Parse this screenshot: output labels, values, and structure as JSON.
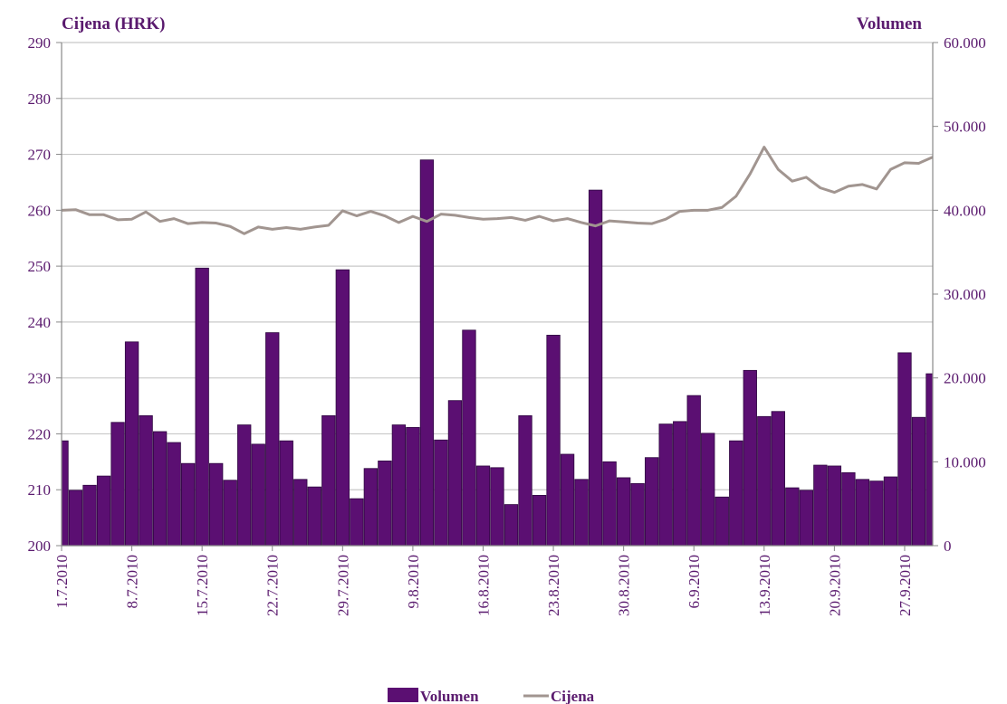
{
  "chart_data": {
    "type": "bar_line",
    "y_title": "Cijena (HRK)",
    "y2_title": "Volumen",
    "categories": [
      "1.7.2010",
      null,
      null,
      null,
      null,
      "8.7.2010",
      null,
      null,
      null,
      null,
      "15.7.2010",
      null,
      null,
      null,
      null,
      "22.7.2010",
      null,
      null,
      null,
      null,
      "29.7.2010",
      null,
      null,
      null,
      null,
      "9.8.2010",
      null,
      null,
      null,
      null,
      "16.8.2010",
      null,
      null,
      null,
      null,
      "23.8.2010",
      null,
      null,
      null,
      null,
      "30.8.2010",
      null,
      null,
      null,
      null,
      "6.9.2010",
      null,
      null,
      null,
      null,
      "13.9.2010",
      null,
      null,
      null,
      null,
      "20.9.2010",
      null,
      null,
      null,
      null,
      "27.9.2010",
      null,
      null
    ],
    "series": [
      {
        "name": "Volumen",
        "type": "bar",
        "axis": "y2",
        "color": "#5b0f72",
        "values": [
          12500,
          6600,
          7200,
          8300,
          14700,
          24300,
          15500,
          13600,
          12300,
          9800,
          33100,
          9800,
          7800,
          14400,
          12100,
          25400,
          12500,
          7900,
          7000,
          15500,
          32900,
          5600,
          9200,
          10100,
          14400,
          14100,
          46000,
          12600,
          17300,
          25700,
          9500,
          9300,
          4900,
          15500,
          6000,
          25100,
          10900,
          7900,
          42400,
          10000,
          8100,
          7400,
          10500,
          14500,
          14800,
          17900,
          13400,
          5800,
          12500,
          20900,
          15400,
          16000,
          6900,
          6600,
          9600,
          9500,
          8700,
          7900,
          7700,
          8200,
          23000,
          15300,
          20500
        ]
      },
      {
        "name": "Cijena",
        "type": "line",
        "axis": "y",
        "color": "#a19590",
        "values": [
          260,
          260.1,
          259.2,
          259.2,
          258.3,
          258.4,
          259.7,
          258,
          258.5,
          257.6,
          257.8,
          257.7,
          257.1,
          255.8,
          257,
          256.6,
          256.9,
          256.6,
          257,
          257.3,
          259.9,
          259,
          259.8,
          259,
          257.8,
          258.9,
          258,
          259.3,
          259.1,
          258.7,
          258.4,
          258.5,
          258.7,
          258.2,
          258.9,
          258.1,
          258.5,
          257.8,
          257.2,
          258.1,
          257.9,
          257.7,
          257.6,
          258.4,
          259.8,
          260,
          260,
          260.5,
          262.5,
          266.5,
          271.3,
          267.3,
          265.2,
          265.9,
          264,
          263.2,
          264.3,
          264.6,
          263.8,
          267.3,
          268.5,
          268.4,
          269.5
        ]
      }
    ],
    "ylim": [
      200,
      290
    ],
    "yticks": [
      200,
      210,
      220,
      230,
      240,
      250,
      260,
      270,
      280,
      290
    ],
    "y2lim": [
      0,
      60000
    ],
    "y2ticks": [
      0,
      {
        "value": 10000,
        "label": "10.000"
      },
      {
        "value": 20000,
        "label": "20.000"
      },
      {
        "value": 30000,
        "label": "30.000"
      },
      {
        "value": 40000,
        "label": "40.000"
      },
      {
        "value": 50000,
        "label": "50.000"
      },
      {
        "value": 60000,
        "label": "60.000"
      }
    ],
    "grid": true,
    "legend": "bottom"
  }
}
